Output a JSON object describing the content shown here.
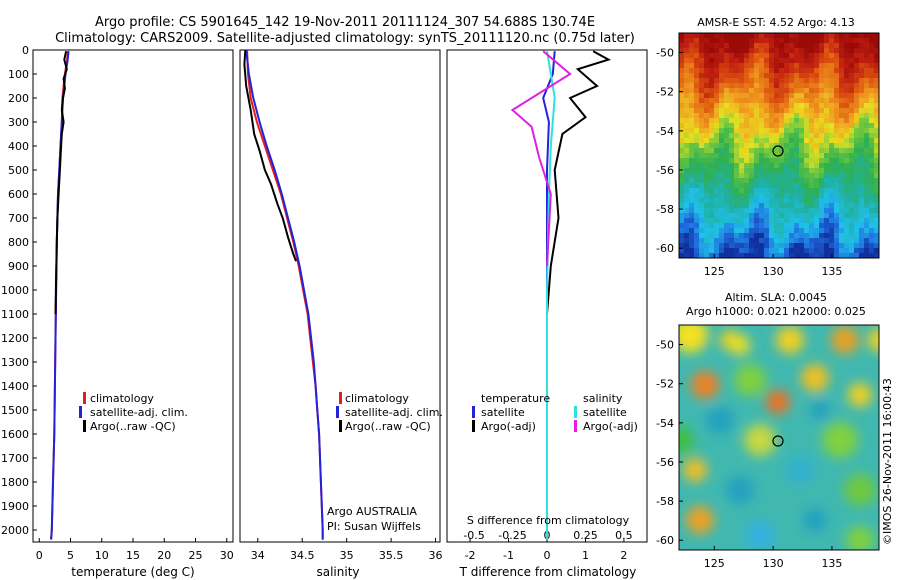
{
  "header": {
    "line1": "Argo profile: CS 5901645_142 19-Nov-2011 20111124_307 54.688S 130.74E",
    "line2": "Climatology: CARS2009. Satellite-adjusted climatology: synTS_20111120.nc (0.75d later)"
  },
  "colors": {
    "clim": "#e81b1b",
    "sat": "#2323d8",
    "argo": "#000000",
    "sal_sat": "#2ee0e0",
    "sal_argo": "#e020e0"
  },
  "chart_data": [
    {
      "type": "line",
      "panel": "temperature",
      "xlabel": "temperature (deg C)",
      "ylabel": "",
      "xlim": [
        -1,
        31
      ],
      "ylim": [
        2050,
        0
      ],
      "xticks": [
        0,
        5,
        10,
        15,
        20,
        25,
        30
      ],
      "yticks": [
        0,
        100,
        200,
        300,
        400,
        500,
        600,
        700,
        800,
        900,
        1000,
        1100,
        1200,
        1300,
        1400,
        1500,
        1600,
        1700,
        1800,
        1900,
        2000
      ],
      "legend": [
        "climatology",
        "satellite-adj. clim.",
        "Argo(..raw -QC)"
      ],
      "series": [
        {
          "name": "climatology",
          "color": "clim",
          "points": [
            [
              4.6,
              5
            ],
            [
              4.4,
              50
            ],
            [
              4.1,
              100
            ],
            [
              3.9,
              150
            ],
            [
              3.7,
              200
            ],
            [
              3.6,
              300
            ],
            [
              3.4,
              400
            ],
            [
              3.2,
              500
            ],
            [
              3.0,
              600
            ],
            [
              2.9,
              700
            ],
            [
              2.8,
              800
            ],
            [
              2.7,
              1000
            ],
            [
              2.6,
              1200
            ],
            [
              2.5,
              1400
            ],
            [
              2.4,
              1600
            ],
            [
              2.2,
              1800
            ],
            [
              2.0,
              2000
            ],
            [
              1.9,
              2040
            ]
          ]
        },
        {
          "name": "satellite-adj. clim.",
          "color": "sat",
          "points": [
            [
              4.7,
              5
            ],
            [
              4.5,
              50
            ],
            [
              4.2,
              100
            ],
            [
              4.0,
              150
            ],
            [
              3.8,
              200
            ],
            [
              3.6,
              300
            ],
            [
              3.4,
              400
            ],
            [
              3.2,
              500
            ],
            [
              3.0,
              600
            ],
            [
              2.9,
              700
            ],
            [
              2.8,
              800
            ],
            [
              2.7,
              1000
            ],
            [
              2.6,
              1200
            ],
            [
              2.5,
              1400
            ],
            [
              2.4,
              1600
            ],
            [
              2.2,
              1800
            ],
            [
              2.0,
              2000
            ],
            [
              1.9,
              2040
            ]
          ]
        },
        {
          "name": "Argo(..raw -QC)",
          "color": "argo",
          "points": [
            [
              4.3,
              5
            ],
            [
              4.0,
              40
            ],
            [
              4.4,
              80
            ],
            [
              3.9,
              120
            ],
            [
              4.1,
              160
            ],
            [
              3.8,
              200
            ],
            [
              3.6,
              250
            ],
            [
              3.9,
              300
            ],
            [
              3.6,
              350
            ],
            [
              3.5,
              400
            ],
            [
              3.3,
              500
            ],
            [
              3.1,
              600
            ],
            [
              2.9,
              700
            ],
            [
              2.8,
              800
            ],
            [
              2.7,
              950
            ],
            [
              2.6,
              1100
            ]
          ]
        }
      ]
    },
    {
      "type": "line",
      "panel": "salinity",
      "xlabel": "salinity",
      "ylabel": "",
      "xlim": [
        33.8,
        36.05
      ],
      "ylim": [
        2050,
        0
      ],
      "xticks": [
        34,
        34.5,
        35,
        35.5,
        36
      ],
      "xticklabels": [
        "34",
        "34.5",
        "35",
        "35.5",
        "36"
      ],
      "legend": [
        "climatology",
        "satellite-adj. clim.",
        "Argo(..raw -QC)"
      ],
      "annotations": [
        "Argo AUSTRALIA",
        "PI: Susan Wijffels"
      ],
      "series": [
        {
          "name": "climatology",
          "color": "clim",
          "points": [
            [
              33.88,
              0
            ],
            [
              33.89,
              100
            ],
            [
              33.92,
              200
            ],
            [
              33.99,
              300
            ],
            [
              34.08,
              400
            ],
            [
              34.17,
              500
            ],
            [
              34.26,
              600
            ],
            [
              34.33,
              700
            ],
            [
              34.4,
              800
            ],
            [
              34.46,
              900
            ],
            [
              34.51,
              1000
            ],
            [
              34.56,
              1100
            ],
            [
              34.59,
              1200
            ],
            [
              34.62,
              1300
            ],
            [
              34.65,
              1400
            ],
            [
              34.67,
              1500
            ],
            [
              34.69,
              1600
            ],
            [
              34.7,
              1700
            ],
            [
              34.71,
              1800
            ],
            [
              34.72,
              1900
            ],
            [
              34.73,
              2000
            ],
            [
              34.73,
              2040
            ]
          ]
        },
        {
          "name": "satellite-adj. clim.",
          "color": "sat",
          "points": [
            [
              33.87,
              0
            ],
            [
              33.9,
              100
            ],
            [
              33.95,
              200
            ],
            [
              34.02,
              300
            ],
            [
              34.1,
              400
            ],
            [
              34.19,
              500
            ],
            [
              34.27,
              600
            ],
            [
              34.34,
              700
            ],
            [
              34.41,
              800
            ],
            [
              34.47,
              900
            ],
            [
              34.52,
              1000
            ],
            [
              34.57,
              1100
            ],
            [
              34.6,
              1200
            ],
            [
              34.63,
              1300
            ],
            [
              34.65,
              1400
            ],
            [
              34.67,
              1500
            ],
            [
              34.69,
              1600
            ],
            [
              34.7,
              1700
            ],
            [
              34.71,
              1800
            ],
            [
              34.72,
              1900
            ],
            [
              34.73,
              2000
            ],
            [
              34.73,
              2040
            ]
          ]
        },
        {
          "name": "Argo(..raw -QC)",
          "color": "argo",
          "points": [
            [
              33.86,
              0
            ],
            [
              33.85,
              60
            ],
            [
              33.87,
              150
            ],
            [
              33.92,
              250
            ],
            [
              33.96,
              350
            ],
            [
              34.02,
              420
            ],
            [
              34.08,
              500
            ],
            [
              34.15,
              560
            ],
            [
              34.22,
              640
            ],
            [
              34.28,
              700
            ],
            [
              34.34,
              780
            ],
            [
              34.4,
              850
            ],
            [
              34.43,
              880
            ]
          ]
        }
      ]
    },
    {
      "type": "line",
      "panel": "difference",
      "xlabel": "T difference from climatology",
      "title": "S difference from climatology",
      "xlim": [
        -2.6,
        2.6
      ],
      "ylim": [
        2050,
        0
      ],
      "xticks": [
        -2,
        -1,
        0,
        1,
        2
      ],
      "top_axis_ticks": [
        "-0.5",
        "-0.25",
        "0",
        "0.25",
        "0.5"
      ],
      "legend": {
        "temperature_title": "temperature",
        "salinity_title": "salinity",
        "temperature_items": [
          "satellite",
          "Argo(-adj)"
        ],
        "salinity_items": [
          "satellite",
          "Argo(-adj)"
        ]
      },
      "series": [
        {
          "name": "satellite",
          "group": "temperature",
          "color": "sat",
          "points": [
            [
              0.2,
              5
            ],
            [
              0.15,
              100
            ],
            [
              -0.1,
              200
            ],
            [
              0.05,
              300
            ],
            [
              0.0,
              500
            ],
            [
              0.0,
              1000
            ],
            [
              0.0,
              2040
            ]
          ]
        },
        {
          "name": "Argo(-adj)",
          "group": "temperature",
          "color": "argo",
          "points": [
            [
              1.2,
              5
            ],
            [
              1.6,
              40
            ],
            [
              0.8,
              80
            ],
            [
              1.3,
              150
            ],
            [
              0.6,
              200
            ],
            [
              1.0,
              280
            ],
            [
              0.4,
              350
            ],
            [
              0.2,
              500
            ],
            [
              0.3,
              700
            ],
            [
              0.1,
              900
            ],
            [
              0.0,
              1100
            ]
          ]
        },
        {
          "name": "satellite",
          "group": "salinity",
          "color": "sal_sat",
          "points": [
            [
              0.0,
              5
            ],
            [
              0.1,
              100
            ],
            [
              0.2,
              200
            ],
            [
              0.1,
              400
            ],
            [
              0.05,
              600
            ],
            [
              0.0,
              1000
            ],
            [
              0.0,
              2040
            ]
          ]
        },
        {
          "name": "Argo(-adj)",
          "group": "salinity",
          "color": "sal_argo",
          "points": [
            [
              -0.1,
              5
            ],
            [
              0.6,
              100
            ],
            [
              -0.9,
              250
            ],
            [
              -0.4,
              320
            ],
            [
              -0.2,
              450
            ],
            [
              0.1,
              600
            ],
            [
              0.0,
              900
            ]
          ]
        }
      ]
    }
  ],
  "maps": {
    "sst": {
      "title": "AMSR-E SST: 4.52 Argo: 4.13",
      "yticks": [
        -50,
        -52,
        -54,
        -56,
        -58,
        -60
      ],
      "xticks": [
        125,
        130,
        135
      ]
    },
    "sla": {
      "title1": "Altim. SLA: 0.0045",
      "title2": "Argo h1000: 0.021 h2000: 0.025",
      "yticks": [
        -50,
        -52,
        -54,
        -56,
        -58,
        -60
      ],
      "xticks": [
        125,
        130,
        135
      ]
    }
  },
  "footer": "©IMOS 26-Nov-2011 16:00:43"
}
